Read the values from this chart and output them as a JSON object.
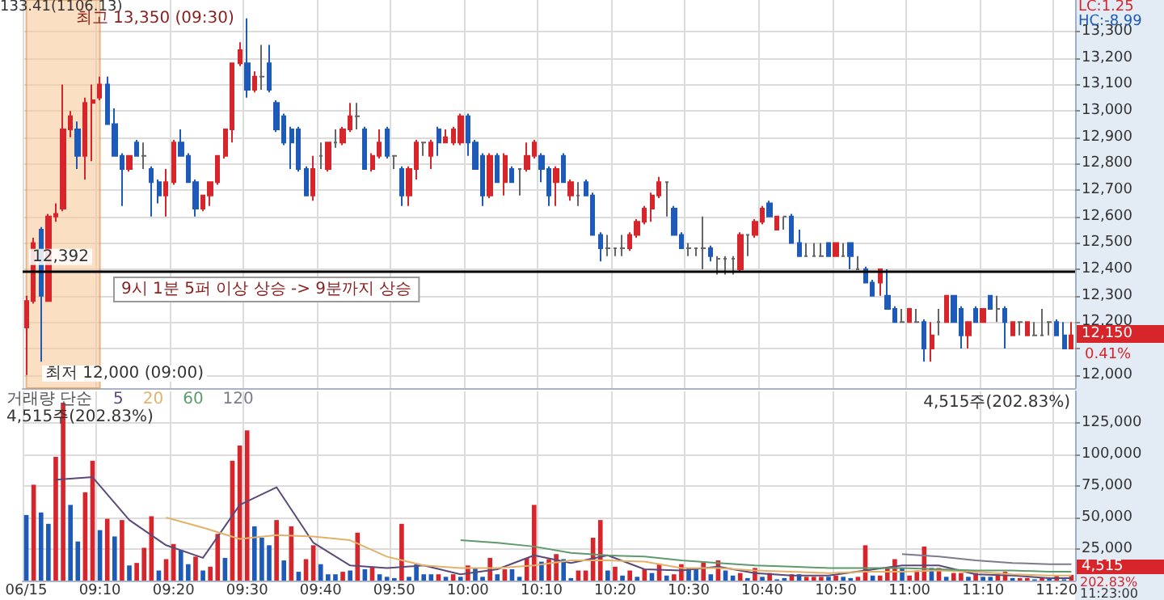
{
  "chart_data": [
    {
      "type": "candlestick",
      "categories": [
        "06/15",
        null,
        null,
        null,
        null,
        null,
        null,
        null,
        null,
        null,
        "09:10",
        null,
        null,
        null,
        null,
        null,
        null,
        null,
        null,
        null,
        "09:20",
        null,
        null,
        null,
        null,
        null,
        null,
        null,
        null,
        null,
        "09:30",
        null,
        null,
        null,
        null,
        null,
        null,
        null,
        null,
        null,
        "09:40",
        null,
        null,
        null,
        null,
        null,
        null,
        null,
        null,
        null,
        "09:50",
        null,
        null,
        null,
        null,
        null,
        null,
        null,
        null,
        null,
        "10:00",
        null,
        null,
        null,
        null,
        null,
        null,
        null,
        null,
        null,
        "10:10",
        null,
        null,
        null,
        null,
        null,
        null,
        null,
        null,
        null,
        "10:20",
        null,
        null,
        null,
        null,
        null,
        null,
        null,
        null,
        null,
        "10:30",
        null,
        null,
        null,
        null,
        null,
        null,
        null,
        null,
        null,
        "10:40",
        null,
        null,
        null,
        null,
        null,
        null,
        null,
        null,
        null,
        "10:50",
        null,
        null,
        null,
        null,
        null,
        null,
        null,
        null,
        null,
        "11:00",
        null,
        null,
        null,
        null,
        null,
        null,
        null,
        null,
        null,
        "11:10",
        null,
        null,
        null,
        null,
        null,
        null,
        null,
        null,
        null,
        "11:20",
        null,
        null
      ],
      "ohlc": [
        [
          12180,
          12300,
          12000,
          12280
        ],
        [
          12280,
          12520,
          12270,
          12500
        ],
        [
          12550,
          12560,
          12050,
          12300
        ],
        [
          12280,
          12610,
          12280,
          12600
        ],
        [
          12600,
          12650,
          12580,
          12610
        ],
        [
          12630,
          13100,
          12620,
          12930
        ],
        [
          12930,
          13000,
          12900,
          12980
        ],
        [
          12930,
          12960,
          12780,
          12830
        ],
        [
          12830,
          13050,
          12740,
          13030
        ],
        [
          13030,
          13100,
          12810,
          13040
        ],
        [
          13050,
          13130,
          13040,
          13100
        ],
        [
          13100,
          13130,
          12950,
          12950
        ],
        [
          12950,
          13010,
          12830,
          12830
        ],
        [
          12830,
          12840,
          12640,
          12780
        ],
        [
          12780,
          12830,
          12770,
          12830
        ],
        [
          12880,
          12890,
          12830,
          12830
        ],
        [
          12830,
          12880,
          12780,
          12830
        ],
        [
          12780,
          12790,
          12600,
          12730
        ],
        [
          12730,
          12740,
          12650,
          12680
        ],
        [
          12680,
          12780,
          12600,
          12730
        ],
        [
          12730,
          12890,
          12720,
          12880
        ],
        [
          12880,
          12930,
          12830,
          12830
        ],
        [
          12830,
          12840,
          12730,
          12730
        ],
        [
          12730,
          12740,
          12600,
          12630
        ],
        [
          12630,
          12680,
          12620,
          12680
        ],
        [
          12680,
          12730,
          12640,
          12730
        ],
        [
          12730,
          12830,
          12720,
          12830
        ],
        [
          12830,
          12930,
          12820,
          12930
        ],
        [
          12930,
          13180,
          12880,
          13180
        ],
        [
          13180,
          13260,
          13170,
          13230
        ],
        [
          13180,
          13350,
          13050,
          13080
        ],
        [
          13080,
          13150,
          13070,
          13130
        ],
        [
          13130,
          13250,
          13080,
          13130
        ],
        [
          13180,
          13250,
          13070,
          13080
        ],
        [
          13030,
          13040,
          12920,
          12930
        ],
        [
          12980,
          12990,
          12870,
          12880
        ],
        [
          12930,
          12940,
          12780,
          12880
        ],
        [
          12930,
          12940,
          12770,
          12780
        ],
        [
          12780,
          12790,
          12680,
          12680
        ],
        [
          12680,
          12830,
          12660,
          12780
        ],
        [
          12830,
          12880,
          12780,
          12830
        ],
        [
          12780,
          12880,
          12770,
          12880
        ],
        [
          12880,
          12930,
          12860,
          12880
        ],
        [
          12880,
          12940,
          12870,
          12930
        ],
        [
          12930,
          13030,
          12920,
          12980
        ],
        [
          12980,
          13030,
          12930,
          12980
        ],
        [
          12930,
          12940,
          12780,
          12780
        ],
        [
          12780,
          12840,
          12770,
          12830
        ],
        [
          12830,
          12930,
          12820,
          12880
        ],
        [
          12930,
          12940,
          12820,
          12830
        ],
        [
          12830,
          12830,
          12780,
          12830
        ],
        [
          12780,
          12790,
          12640,
          12680
        ],
        [
          12680,
          12790,
          12640,
          12780
        ],
        [
          12780,
          12890,
          12740,
          12880
        ],
        [
          12880,
          12880,
          12830,
          12880
        ],
        [
          12830,
          12890,
          12780,
          12880
        ],
        [
          12930,
          12940,
          12830,
          12880
        ],
        [
          12880,
          12930,
          12880,
          12900
        ],
        [
          12880,
          12940,
          12870,
          12930
        ],
        [
          12880,
          12990,
          12870,
          12980
        ],
        [
          12980,
          12990,
          12830,
          12880
        ],
        [
          12880,
          12890,
          12780,
          12780
        ],
        [
          12830,
          12840,
          12640,
          12680
        ],
        [
          12680,
          12840,
          12670,
          12830
        ],
        [
          12830,
          12840,
          12730,
          12730
        ],
        [
          12730,
          12840,
          12680,
          12830
        ],
        [
          12780,
          12790,
          12730,
          12730
        ],
        [
          12780,
          12780,
          12680,
          12780
        ],
        [
          12780,
          12880,
          12770,
          12830
        ],
        [
          12830,
          12890,
          12820,
          12880
        ],
        [
          12830,
          12840,
          12730,
          12780
        ],
        [
          12780,
          12790,
          12640,
          12680
        ],
        [
          12730,
          12790,
          12640,
          12780
        ],
        [
          12830,
          12840,
          12730,
          12730
        ],
        [
          12680,
          12740,
          12660,
          12730
        ],
        [
          12680,
          12730,
          12640,
          12680
        ],
        [
          12730,
          12740,
          12680,
          12680
        ],
        [
          12680,
          12690,
          12530,
          12530
        ],
        [
          12530,
          12540,
          12430,
          12480
        ],
        [
          12480,
          12530,
          12450,
          12480
        ],
        [
          12480,
          12480,
          12450,
          12480
        ],
        [
          12480,
          12530,
          12450,
          12480
        ],
        [
          12480,
          12540,
          12470,
          12530
        ],
        [
          12530,
          12590,
          12520,
          12580
        ],
        [
          12580,
          12640,
          12570,
          12630
        ],
        [
          12630,
          12690,
          12580,
          12680
        ],
        [
          12680,
          12750,
          12670,
          12730
        ],
        [
          12730,
          12730,
          12600,
          12730
        ],
        [
          12630,
          12640,
          12530,
          12530
        ],
        [
          12530,
          12540,
          12480,
          12480
        ],
        [
          12480,
          12500,
          12450,
          12480
        ],
        [
          12480,
          12480,
          12450,
          12480
        ],
        [
          12480,
          12600,
          12400,
          12480
        ],
        [
          12480,
          12490,
          12430,
          12450
        ],
        [
          12440,
          12450,
          12380,
          12440
        ],
        [
          12440,
          12450,
          12380,
          12440
        ],
        [
          12440,
          12450,
          12380,
          12440
        ],
        [
          12400,
          12540,
          12390,
          12530
        ],
        [
          12530,
          12530,
          12450,
          12530
        ],
        [
          12530,
          12590,
          12520,
          12580
        ],
        [
          12580,
          12640,
          12570,
          12630
        ],
        [
          12650,
          12660,
          12600,
          12600
        ],
        [
          12550,
          12600,
          12550,
          12600
        ],
        [
          12600,
          12600,
          12550,
          12600
        ],
        [
          12600,
          12610,
          12500,
          12500
        ],
        [
          12500,
          12550,
          12450,
          12450
        ],
        [
          12450,
          12500,
          12450,
          12450
        ],
        [
          12450,
          12500,
          12450,
          12450
        ],
        [
          12450,
          12500,
          12450,
          12450
        ],
        [
          12500,
          12500,
          12450,
          12450
        ],
        [
          12450,
          12500,
          12450,
          12500
        ],
        [
          12450,
          12500,
          12450,
          12450
        ],
        [
          12500,
          12500,
          12400,
          12450
        ],
        [
          12400,
          12450,
          12400,
          12400
        ],
        [
          12400,
          12410,
          12350,
          12350
        ],
        [
          12350,
          12360,
          12300,
          12300
        ],
        [
          12350,
          12400,
          12300,
          12400
        ],
        [
          12300,
          12400,
          12250,
          12250
        ],
        [
          12250,
          12260,
          12200,
          12200
        ],
        [
          12200,
          12250,
          12200,
          12200
        ],
        [
          12200,
          12250,
          12200,
          12250
        ],
        [
          12200,
          12250,
          12200,
          12200
        ],
        [
          12200,
          12210,
          12050,
          12100
        ],
        [
          12100,
          12200,
          12050,
          12150
        ],
        [
          12200,
          12250,
          12150,
          12200
        ],
        [
          12200,
          12300,
          12200,
          12300
        ],
        [
          12300,
          12300,
          12200,
          12200
        ],
        [
          12250,
          12260,
          12100,
          12150
        ],
        [
          12150,
          12200,
          12100,
          12200
        ],
        [
          12250,
          12260,
          12200,
          12200
        ],
        [
          12200,
          12250,
          12200,
          12250
        ],
        [
          12300,
          12300,
          12250,
          12250
        ],
        [
          12250,
          12300,
          12200,
          12250
        ],
        [
          12250,
          12260,
          12100,
          12200
        ],
        [
          12150,
          12200,
          12150,
          12200
        ],
        [
          12200,
          12200,
          12150,
          12200
        ],
        [
          12150,
          12200,
          12150,
          12200
        ],
        [
          12150,
          12200,
          12150,
          12150
        ],
        [
          12150,
          12250,
          12150,
          12150
        ],
        [
          12200,
          12200,
          12150,
          12200
        ],
        [
          12200,
          12210,
          12150,
          12150
        ],
        [
          12150,
          12200,
          12100,
          12100
        ],
        [
          12100,
          12200,
          12100,
          12150
        ]
      ],
      "colors": [
        "#d7262b",
        "#d7262b",
        "#1e5bb8",
        "#d7262b",
        "#d7262b",
        "#d7262b",
        "#d7262b",
        "#1e5bb8",
        "#d7262b",
        "#d7262b",
        "#d7262b",
        "#1e5bb8",
        "#1e5bb8",
        "#1e5bb8",
        "#d7262b",
        "#1e5bb8",
        "#666666",
        "#1e5bb8",
        "#1e5bb8",
        "#d7262b",
        "#d7262b",
        "#1e5bb8",
        "#1e5bb8",
        "#1e5bb8",
        "#d7262b",
        "#d7262b",
        "#d7262b",
        "#d7262b",
        "#d7262b",
        "#d7262b",
        "#1e5bb8",
        "#d7262b",
        "#666666",
        "#1e5bb8",
        "#1e5bb8",
        "#1e5bb8",
        "#1e5bb8",
        "#1e5bb8",
        "#1e5bb8",
        "#d7262b",
        "#666666",
        "#d7262b",
        "#666666",
        "#d7262b",
        "#d7262b",
        "#666666",
        "#1e5bb8",
        "#d7262b",
        "#d7262b",
        "#1e5bb8",
        "#666666",
        "#1e5bb8",
        "#d7262b",
        "#d7262b",
        "#666666",
        "#d7262b",
        "#1e5bb8",
        "#d7262b",
        "#d7262b",
        "#d7262b",
        "#1e5bb8",
        "#1e5bb8",
        "#1e5bb8",
        "#d7262b",
        "#1e5bb8",
        "#d7262b",
        "#1e5bb8",
        "#666666",
        "#d7262b",
        "#d7262b",
        "#1e5bb8",
        "#1e5bb8",
        "#d7262b",
        "#1e5bb8",
        "#d7262b",
        "#666666",
        "#1e5bb8",
        "#1e5bb8",
        "#1e5bb8",
        "#666666",
        "#666666",
        "#666666",
        "#d7262b",
        "#d7262b",
        "#d7262b",
        "#d7262b",
        "#d7262b",
        "#666666",
        "#1e5bb8",
        "#1e5bb8",
        "#666666",
        "#666666",
        "#666666",
        "#1e5bb8",
        "#666666",
        "#666666",
        "#666666",
        "#d7262b",
        "#666666",
        "#d7262b",
        "#d7262b",
        "#1e5bb8",
        "#d7262b",
        "#666666",
        "#1e5bb8",
        "#1e5bb8",
        "#666666",
        "#666666",
        "#666666",
        "#1e5bb8",
        "#d7262b",
        "#666666",
        "#1e5bb8",
        "#666666",
        "#1e5bb8",
        "#1e5bb8",
        "#d7262b",
        "#1e5bb8",
        "#1e5bb8",
        "#666666",
        "#d7262b",
        "#666666",
        "#1e5bb8",
        "#d7262b",
        "#666666",
        "#d7262b",
        "#1e5bb8",
        "#1e5bb8",
        "#d7262b",
        "#1e5bb8",
        "#d7262b",
        "#1e5bb8",
        "#666666",
        "#1e5bb8",
        "#d7262b",
        "#666666",
        "#d7262b",
        "#666666",
        "#666666",
        "#666666",
        "#1e5bb8",
        "#1e5bb8",
        "#d7262b"
      ],
      "ylim": [
        11950,
        13420
      ],
      "yticks": [
        {
          "value": 12000,
          "label": "12,000"
        },
        {
          "value": 12100,
          "label": null
        },
        {
          "value": 12200,
          "label": "12,200"
        },
        {
          "value": 12300,
          "label": "12,300"
        },
        {
          "value": 12400,
          "label": "12,400"
        },
        {
          "value": 12500,
          "label": "12,500"
        },
        {
          "value": 12600,
          "label": "12,600"
        },
        {
          "value": 12700,
          "label": "12,700"
        },
        {
          "value": 12800,
          "label": "12,800"
        },
        {
          "value": 12900,
          "label": "12,900"
        },
        {
          "value": 13000,
          "label": "13,000"
        },
        {
          "value": 13100,
          "label": "13,100"
        },
        {
          "value": 13200,
          "label": "13,200"
        },
        {
          "value": 13300,
          "label": "13,300"
        }
      ],
      "grid": true,
      "tick_labels": "y",
      "ref_lines": [
        {
          "axis": "y",
          "value": 12392,
          "label": "12,392",
          "color": "#000000"
        }
      ],
      "bands": [
        {
          "axis": "x",
          "from": "06/15",
          "to": "09:10",
          "label": "133.41(1106.13)",
          "color": "#f9c99b"
        }
      ],
      "annotations": [
        {
          "text": "최고 13,350 (09:30)",
          "x": "09:30",
          "y": 13350
        },
        "최저 12,000 (09:00)",
        "9시 1분 5퍼 이상 상승 -> 9분까지 상승",
        "LC:1.25",
        "HC:-8.99",
        "12,150",
        "0.41%"
      ]
    },
    {
      "type": "bar",
      "categories": [
        "06/15",
        null,
        null,
        null,
        null,
        null,
        null,
        null,
        null,
        null,
        "09:10",
        null,
        null,
        null,
        null,
        null,
        null,
        null,
        null,
        null,
        "09:20",
        null,
        null,
        null,
        null,
        null,
        null,
        null,
        null,
        null,
        "09:30",
        null,
        null,
        null,
        null,
        null,
        null,
        null,
        null,
        null,
        "09:40",
        null,
        null,
        null,
        null,
        null,
        null,
        null,
        null,
        null,
        "09:50",
        null,
        null,
        null,
        null,
        null,
        null,
        null,
        null,
        null,
        "10:00",
        null,
        null,
        null,
        null,
        null,
        null,
        null,
        null,
        null,
        "10:10",
        null,
        null,
        null,
        null,
        null,
        null,
        null,
        null,
        null,
        "10:20",
        null,
        null,
        null,
        null,
        null,
        null,
        null,
        null,
        null,
        "10:30",
        null,
        null,
        null,
        null,
        null,
        null,
        null,
        null,
        null,
        "10:40",
        null,
        null,
        null,
        null,
        null,
        null,
        null,
        null,
        null,
        "10:50",
        null,
        null,
        null,
        null,
        null,
        null,
        null,
        null,
        null,
        "11:00",
        null,
        null,
        null,
        null,
        null,
        null,
        null,
        null,
        null,
        "11:10",
        null,
        null,
        null,
        null,
        null,
        null,
        null,
        null,
        null,
        "11:20",
        null,
        null
      ],
      "series": [
        {
          "type": "bar",
          "values": [
            52000,
            76000,
            54000,
            45000,
            98000,
            141000,
            60000,
            31000,
            70000,
            95000,
            40000,
            49000,
            35000,
            48000,
            12000,
            14000,
            26000,
            51000,
            8000,
            17000,
            29000,
            24000,
            13000,
            19000,
            8000,
            11000,
            37000,
            18000,
            95000,
            107000,
            119000,
            43000,
            34000,
            28000,
            48000,
            16000,
            43000,
            7000,
            17000,
            28000,
            13000,
            5000,
            5000,
            7000,
            8000,
            38000,
            9000,
            11000,
            5000,
            3000,
            2000,
            45000,
            3000,
            13000,
            5000,
            5000,
            5000,
            3000,
            5000,
            3000,
            12000,
            10000,
            3000,
            18000,
            5000,
            9000,
            9000,
            3000,
            18000,
            60000,
            15000,
            17000,
            21000,
            17000,
            2000,
            8000,
            8000,
            34000,
            48000,
            8000,
            11000,
            4000,
            8000,
            3000,
            9000,
            6000,
            13000,
            4000,
            5000,
            13000,
            10000,
            10000,
            15000,
            5000,
            16000,
            8000,
            4000,
            6000,
            2000,
            10000,
            3000,
            6000,
            1000,
            2000,
            5000,
            5000,
            3000,
            3000,
            3000,
            3000,
            4000,
            3000,
            2000,
            3000,
            28000,
            4000,
            4000,
            10000,
            17000,
            10000,
            4000,
            8000,
            27000,
            10000,
            10000,
            3000,
            6000,
            6000,
            3000,
            6000,
            3000,
            3000,
            4000,
            7000,
            2000,
            2000,
            2000,
            1000,
            2000,
            2000,
            4000,
            1000,
            4515
          ],
          "colors": [
            "#1e5bb8",
            "#d7262b",
            "#1e5bb8",
            "#1e5bb8",
            "#d7262b",
            "#d7262b",
            "#1e5bb8",
            "#1e5bb8",
            "#d7262b",
            "#d7262b",
            "#1e5bb8",
            "#d7262b",
            "#1e5bb8",
            "#d7262b",
            "#1e5bb8",
            "#d7262b",
            "#d7262b",
            "#d7262b",
            "#1e5bb8",
            "#d7262b",
            "#d7262b",
            "#1e5bb8",
            "#1e5bb8",
            "#d7262b",
            "#1e5bb8",
            "#d7262b",
            "#d7262b",
            "#1e5bb8",
            "#d7262b",
            "#d7262b",
            "#d7262b",
            "#1e5bb8",
            "#1e5bb8",
            "#1e5bb8",
            "#d7262b",
            "#1e5bb8",
            "#d7262b",
            "#1e5bb8",
            "#d7262b",
            "#d7262b",
            "#1e5bb8",
            "#1e5bb8",
            "#1e5bb8",
            "#d7262b",
            "#1e5bb8",
            "#d7262b",
            "#1e5bb8",
            "#d7262b",
            "#1e5bb8",
            "#1e5bb8",
            "#1e5bb8",
            "#d7262b",
            "#1e5bb8",
            "#1e5bb8",
            "#1e5bb8",
            "#1e5bb8",
            "#d7262b",
            "#1e5bb8",
            "#d7262b",
            "#1e5bb8",
            "#d7262b",
            "#1e5bb8",
            "#1e5bb8",
            "#d7262b",
            "#1e5bb8",
            "#d7262b",
            "#1e5bb8",
            "#1e5bb8",
            "#d7262b",
            "#d7262b",
            "#1e5bb8",
            "#d7262b",
            "#d7262b",
            "#1e5bb8",
            "#1e5bb8",
            "#d7262b",
            "#d7262b",
            "#d7262b",
            "#d7262b",
            "#1e5bb8",
            "#d7262b",
            "#1e5bb8",
            "#d7262b",
            "#1e5bb8",
            "#d7262b",
            "#1e5bb8",
            "#d7262b",
            "#1e5bb8",
            "#d7262b",
            "#d7262b",
            "#1e5bb8",
            "#1e5bb8",
            "#d7262b",
            "#1e5bb8",
            "#d7262b",
            "#1e5bb8",
            "#1e5bb8",
            "#d7262b",
            "#1e5bb8",
            "#d7262b",
            "#1e5bb8",
            "#d7262b",
            "#1e5bb8",
            "#1e5bb8",
            "#d7262b",
            "#1e5bb8",
            "#d7262b",
            "#d7262b",
            "#d7262b",
            "#1e5bb8",
            "#d7262b",
            "#1e5bb8",
            "#1e5bb8",
            "#d7262b",
            "#d7262b",
            "#1e5bb8",
            "#d7262b",
            "#d7262b",
            "#d7262b",
            "#1e5bb8",
            "#d7262b",
            "#d7262b",
            "#d7262b",
            "#1e5bb8",
            "#d7262b",
            "#1e5bb8",
            "#d7262b",
            "#d7262b",
            "#1e5bb8",
            "#d7262b",
            "#1e5bb8",
            "#1e5bb8",
            "#d7262b",
            "#d7262b",
            "#1e5bb8",
            "#d7262b",
            "#d7262b",
            "#1e5bb8",
            "#d7262b",
            "#1e5bb8",
            "#d7262b",
            "#1e5bb8",
            "#d7262b"
          ]
        },
        {
          "type": "line",
          "name": "5",
          "color": "#5b4a78",
          "values": [
            null,
            null,
            null,
            null,
            80000,
            null,
            null,
            null,
            null,
            82000,
            null,
            null,
            null,
            null,
            48000,
            null,
            null,
            null,
            null,
            28000,
            null,
            null,
            null,
            null,
            18000,
            null,
            null,
            null,
            null,
            60000,
            null,
            null,
            null,
            null,
            74000,
            null,
            null,
            null,
            null,
            30000,
            null,
            null,
            null,
            null,
            12000,
            null,
            null,
            null,
            null,
            10000,
            null,
            null,
            null,
            null,
            12000,
            null,
            null,
            null,
            null,
            5000,
            null,
            null,
            null,
            null,
            9000,
            null,
            null,
            null,
            null,
            20000,
            null,
            null,
            null,
            null,
            14000,
            null,
            null,
            null,
            null,
            20000,
            null,
            null,
            null,
            null,
            9000,
            null,
            null,
            null,
            null,
            8000,
            null,
            null,
            null,
            null,
            11000,
            null,
            null,
            null,
            null,
            6000,
            null,
            null,
            null,
            null,
            4000,
            null,
            null,
            null,
            null,
            4000,
            null,
            null,
            null,
            null,
            8000,
            null,
            null,
            null,
            null,
            12000,
            null,
            null,
            null,
            null,
            12000,
            null,
            null,
            null,
            null,
            5000,
            null,
            null,
            null,
            null,
            4000,
            null,
            null,
            null,
            null,
            2000,
            null,
            null,
            2000
          ]
        },
        {
          "type": "line",
          "name": "20",
          "color": "#e3b26a",
          "values": [
            null,
            null,
            null,
            null,
            null,
            null,
            null,
            null,
            null,
            null,
            null,
            null,
            null,
            null,
            null,
            null,
            null,
            null,
            null,
            50000,
            null,
            null,
            null,
            null,
            42000,
            null,
            null,
            null,
            null,
            33000,
            null,
            null,
            null,
            null,
            36000,
            null,
            null,
            null,
            null,
            35000,
            null,
            null,
            null,
            null,
            32000,
            null,
            null,
            null,
            null,
            19000,
            null,
            null,
            null,
            null,
            12000,
            null,
            null,
            null,
            null,
            10000,
            null,
            null,
            null,
            null,
            10000,
            null,
            null,
            null,
            null,
            12000,
            null,
            null,
            null,
            null,
            16000,
            null,
            null,
            null,
            null,
            16000,
            null,
            null,
            null,
            null,
            15000,
            null,
            null,
            null,
            null,
            10000,
            null,
            null,
            null,
            null,
            10000,
            null,
            null,
            null,
            null,
            8000,
            null,
            null,
            null,
            null,
            7000,
            null,
            null,
            null,
            null,
            6000,
            null,
            null,
            null,
            null,
            7000,
            null,
            null,
            null,
            null,
            7000,
            null,
            null,
            null,
            null,
            8000,
            null,
            null,
            null,
            null,
            7000,
            null,
            null,
            null,
            null,
            5000,
            null,
            null,
            null,
            null,
            4000,
            null,
            null,
            4000
          ]
        },
        {
          "type": "line",
          "name": "60",
          "color": "#5f9a6c",
          "values": [
            null,
            null,
            null,
            null,
            null,
            null,
            null,
            null,
            null,
            null,
            null,
            null,
            null,
            null,
            null,
            null,
            null,
            null,
            null,
            null,
            null,
            null,
            null,
            null,
            null,
            null,
            null,
            null,
            null,
            null,
            null,
            null,
            null,
            null,
            null,
            null,
            null,
            null,
            null,
            null,
            null,
            null,
            null,
            null,
            null,
            null,
            null,
            null,
            null,
            null,
            null,
            null,
            null,
            null,
            null,
            null,
            null,
            null,
            null,
            32000,
            null,
            null,
            null,
            null,
            30000,
            null,
            null,
            null,
            null,
            27000,
            null,
            null,
            null,
            null,
            22000,
            null,
            null,
            null,
            null,
            20000,
            null,
            null,
            null,
            null,
            19000,
            null,
            null,
            null,
            null,
            16000,
            null,
            null,
            null,
            null,
            14000,
            null,
            null,
            null,
            null,
            12000,
            null,
            null,
            null,
            null,
            11000,
            null,
            null,
            null,
            null,
            10000,
            null,
            null,
            null,
            null,
            10000,
            null,
            null,
            null,
            null,
            10000,
            null,
            null,
            null,
            null,
            9000,
            null,
            null,
            null,
            null,
            8000,
            null,
            null,
            null,
            null,
            8000,
            null,
            null,
            null,
            null,
            7000,
            null,
            null,
            7000
          ]
        },
        {
          "type": "line",
          "name": "120",
          "color": "#7c7c8c",
          "values": [
            null,
            null,
            null,
            null,
            null,
            null,
            null,
            null,
            null,
            null,
            null,
            null,
            null,
            null,
            null,
            null,
            null,
            null,
            null,
            null,
            null,
            null,
            null,
            null,
            null,
            null,
            null,
            null,
            null,
            null,
            null,
            null,
            null,
            null,
            null,
            null,
            null,
            null,
            null,
            null,
            null,
            null,
            null,
            null,
            null,
            null,
            null,
            null,
            null,
            null,
            null,
            null,
            null,
            null,
            null,
            null,
            null,
            null,
            null,
            null,
            null,
            null,
            null,
            null,
            null,
            null,
            null,
            null,
            null,
            null,
            null,
            null,
            null,
            null,
            null,
            null,
            null,
            null,
            null,
            null,
            null,
            null,
            null,
            null,
            null,
            null,
            null,
            null,
            null,
            null,
            null,
            null,
            null,
            null,
            null,
            null,
            null,
            null,
            null,
            null,
            null,
            null,
            null,
            null,
            null,
            null,
            null,
            null,
            null,
            null,
            null,
            null,
            null,
            null,
            null,
            null,
            null,
            null,
            null,
            21000,
            null,
            null,
            null,
            null,
            19000,
            null,
            null,
            null,
            null,
            16000,
            null,
            null,
            null,
            null,
            14000,
            null,
            null,
            null,
            null,
            13000,
            null,
            null,
            13000
          ]
        }
      ],
      "ylim": [
        0,
        150000
      ],
      "yticks": [
        {
          "value": 25000,
          "label": "25,000"
        },
        {
          "value": 50000,
          "label": "50,000"
        },
        {
          "value": 75000,
          "label": "75,000"
        },
        {
          "value": 100000,
          "label": "100,000"
        },
        {
          "value": 125000,
          "label": "125,000"
        }
      ],
      "grid": true,
      "legend": "top left",
      "legend_title": "거래량 단순",
      "marker": "none",
      "annotations": [
        "4,515주(202.83%)",
        "4,515주(202.83%)",
        "4,515",
        "202.83%",
        "11:23:00"
      ]
    }
  ]
}
